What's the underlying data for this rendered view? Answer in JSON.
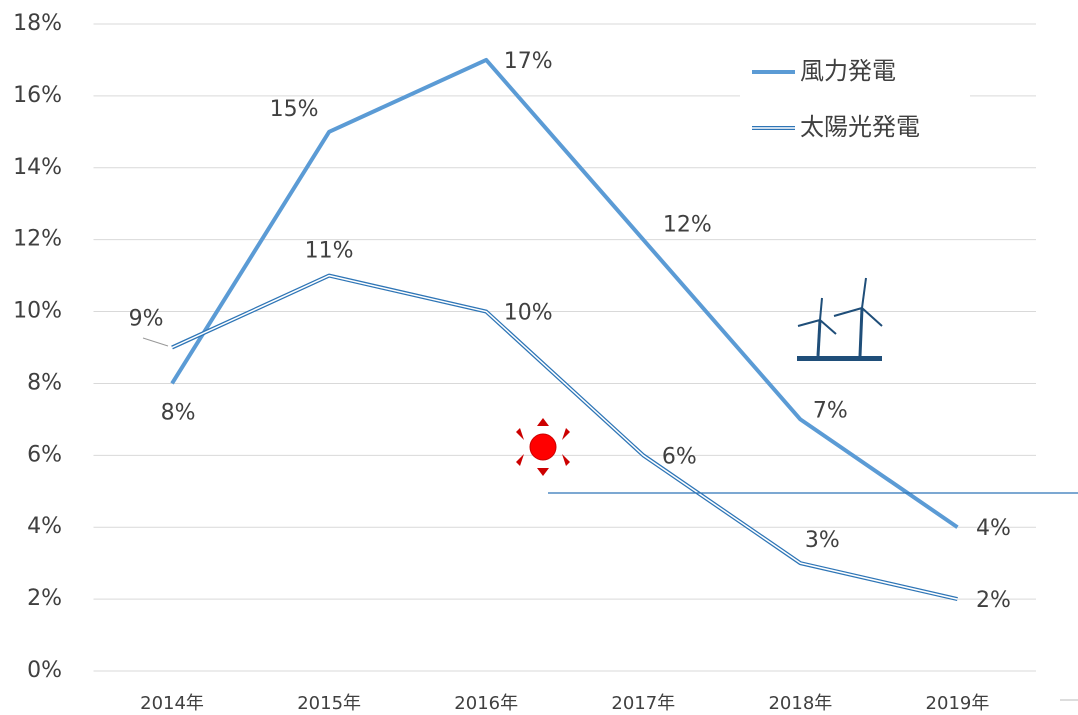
{
  "chart_data": {
    "type": "line",
    "categories": [
      "2014年",
      "2015年",
      "2016年",
      "2017年",
      "2018年",
      "2019年"
    ],
    "series": [
      {
        "name": "風力発電",
        "color": "#5b9bd5",
        "values": [
          8,
          15,
          17,
          12,
          7,
          4
        ],
        "value_labels": [
          "8%",
          "15%",
          "17%",
          "12%",
          "7%",
          "4%"
        ]
      },
      {
        "name": "太陽光発電",
        "color": "#2e75b6",
        "values": [
          9,
          11,
          10,
          6,
          3,
          2
        ],
        "value_labels": [
          "9%",
          "11%",
          "10%",
          "6%",
          "3%",
          "2%"
        ]
      }
    ],
    "ylim": [
      0,
      18
    ],
    "yticks": [
      {
        "value": 0,
        "label": "0%"
      },
      {
        "value": 2,
        "label": "2%"
      },
      {
        "value": 4,
        "label": "4%"
      },
      {
        "value": 6,
        "label": "6%"
      },
      {
        "value": 8,
        "label": "8%"
      },
      {
        "value": 10,
        "label": "10%"
      },
      {
        "value": 12,
        "label": "12%"
      },
      {
        "value": 14,
        "label": "14%"
      },
      {
        "value": 16,
        "label": "16%"
      },
      {
        "value": 18,
        "label": "18%"
      }
    ],
    "grid": true
  }
}
